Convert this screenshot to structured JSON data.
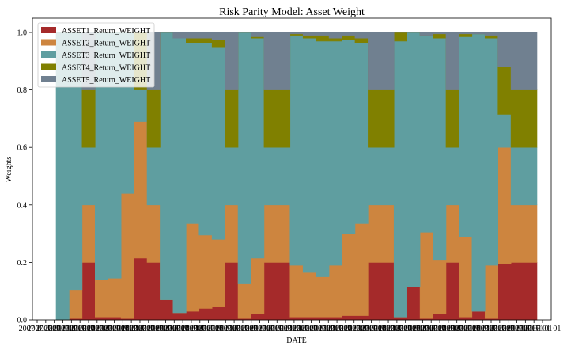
{
  "chart_data": {
    "type": "area",
    "stacked": true,
    "step": true,
    "title": "Risk Parity Model: Asset Weight",
    "xlabel": "DATE",
    "ylabel": "Weights",
    "ylim": [
      0,
      1.0
    ],
    "yticks": [
      "0.0",
      "0.2",
      "0.4",
      "0.6",
      "0.8",
      "1.0"
    ],
    "xtick_text": "2007-01-01",
    "legend_position": "upper-left",
    "grid": false,
    "series": [
      {
        "name": "ASSET1_Return_WEIGHT",
        "color": "#a52a2a",
        "values": [
          0.0,
          0.005,
          0.2,
          0.01,
          0.01,
          0.005,
          0.215,
          0.2,
          0.07,
          0.025,
          0.03,
          0.04,
          0.045,
          0.2,
          0.005,
          0.02,
          0.2,
          0.2,
          0.01,
          0.01,
          0.01,
          0.01,
          0.015,
          0.015,
          0.2,
          0.2,
          0.01,
          0.115,
          0.005,
          0.02,
          0.2,
          0.01,
          0.03,
          0.005,
          0.195,
          0.2,
          0.2
        ]
      },
      {
        "name": "ASSET2_Return_WEIGHT",
        "color": "#cd853f",
        "values": [
          0.0,
          0.1,
          0.2,
          0.13,
          0.135,
          0.435,
          0.475,
          0.2,
          0.0,
          0.0,
          0.305,
          0.255,
          0.235,
          0.2,
          0.12,
          0.195,
          0.2,
          0.2,
          0.18,
          0.155,
          0.14,
          0.18,
          0.285,
          0.32,
          0.2,
          0.2,
          0.0,
          0.0,
          0.3,
          0.19,
          0.2,
          0.28,
          0.0,
          0.185,
          0.405,
          0.2,
          0.2
        ]
      },
      {
        "name": "ASSET3_Return_WEIGHT",
        "color": "#5f9ea0",
        "values": [
          1.0,
          0.895,
          0.2,
          0.86,
          0.855,
          0.56,
          0.11,
          0.2,
          0.93,
          0.955,
          0.63,
          0.67,
          0.67,
          0.2,
          0.875,
          0.765,
          0.2,
          0.2,
          0.8,
          0.815,
          0.82,
          0.78,
          0.675,
          0.63,
          0.2,
          0.2,
          0.96,
          0.885,
          0.685,
          0.77,
          0.2,
          0.695,
          0.965,
          0.79,
          0.115,
          0.2,
          0.2
        ]
      },
      {
        "name": "ASSET4_Return_WEIGHT",
        "color": "#808000",
        "values": [
          0.0,
          0.0,
          0.2,
          0.0,
          0.0,
          0.0,
          0.2,
          0.2,
          0.0,
          0.0,
          0.015,
          0.015,
          0.025,
          0.2,
          0.0,
          0.005,
          0.2,
          0.2,
          0.005,
          0.01,
          0.02,
          0.01,
          0.015,
          0.015,
          0.2,
          0.2,
          0.03,
          0.0,
          0.0,
          0.015,
          0.2,
          0.01,
          0.0,
          0.01,
          0.165,
          0.2,
          0.2
        ]
      },
      {
        "name": "ASSET5_Return_WEIGHT",
        "color": "#708090",
        "values": [
          0.0,
          0.0,
          0.2,
          0.0,
          0.0,
          0.0,
          0.0,
          0.2,
          0.0,
          0.02,
          0.02,
          0.02,
          0.025,
          0.2,
          0.0,
          0.015,
          0.2,
          0.2,
          0.005,
          0.01,
          0.01,
          0.02,
          0.01,
          0.02,
          0.2,
          0.2,
          0.0,
          0.0,
          0.01,
          0.005,
          0.2,
          0.005,
          0.005,
          0.01,
          0.12,
          0.2,
          0.2
        ]
      }
    ]
  }
}
